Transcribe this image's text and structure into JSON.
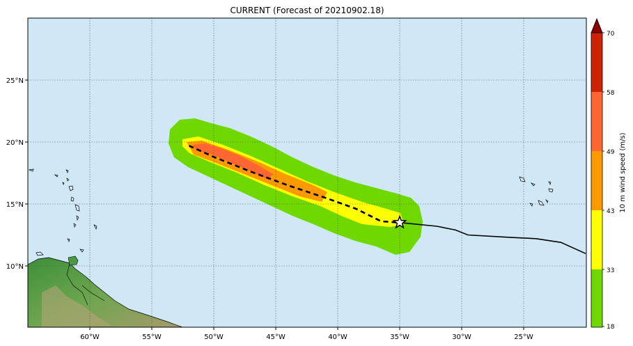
{
  "title": "CURRENT (Forecast of 20210902.18)",
  "colorbar": {
    "label": "10 m wind speed (m/s)",
    "ticks": [
      "18",
      "33",
      "43",
      "49",
      "58",
      "70"
    ],
    "colors": [
      "#6ed800",
      "#ffff00",
      "#ff9900",
      "#ff6633",
      "#cc2200"
    ],
    "extend_color": "#8b0000"
  },
  "x_ticks": [
    "60°W",
    "55°W",
    "50°W",
    "45°W",
    "40°W",
    "35°W",
    "30°W",
    "25°W"
  ],
  "y_ticks": [
    "25°N",
    "20°N",
    "15°N",
    "10°N"
  ],
  "colors": {
    "ocean": "#d0e8f6",
    "grid": "#555555",
    "track": "#000000"
  },
  "storm": {
    "current_position": {
      "lon": -35.0,
      "lat": 13.5
    },
    "observed_track": [
      [
        -35.0,
        13.5
      ],
      [
        -32.0,
        13.2
      ],
      [
        -30.5,
        12.9
      ],
      [
        -29.5,
        12.5
      ],
      [
        -26.0,
        12.3
      ],
      [
        -24.0,
        12.2
      ],
      [
        -22.0,
        11.9
      ],
      [
        -20.0,
        11.0
      ]
    ],
    "forecast_track": [
      [
        -52.0,
        19.7
      ],
      [
        -50.0,
        18.8
      ],
      [
        -47.0,
        17.6
      ],
      [
        -44.0,
        16.5
      ],
      [
        -41.0,
        15.5
      ],
      [
        -38.5,
        14.6
      ],
      [
        -36.5,
        13.6
      ],
      [
        -35.0,
        13.5
      ]
    ]
  }
}
